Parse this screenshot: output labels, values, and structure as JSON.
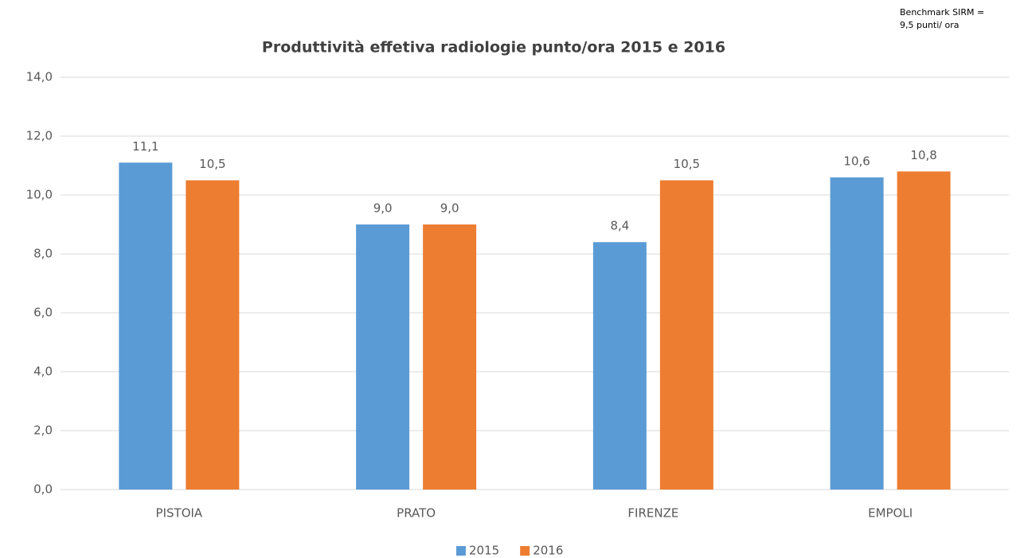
{
  "chart_data": {
    "type": "bar",
    "title": "Produttività effetiva radiologie punto/ora 2015 e 2016",
    "annotation": [
      "Benchmark SIRM =",
      "9,5 punti/ ora"
    ],
    "categories": [
      "PISTOIA",
      "PRATO",
      "FIRENZE",
      "EMPOLI"
    ],
    "series": [
      {
        "name": "2015",
        "color": "#5b9bd5",
        "values": [
          11.1,
          9.0,
          8.4,
          10.6
        ],
        "value_labels": [
          "11,1",
          "9,0",
          "8,4",
          "10,6"
        ]
      },
      {
        "name": "2016",
        "color": "#ed7d31",
        "values": [
          10.5,
          9.0,
          10.5,
          10.8
        ],
        "value_labels": [
          "10,5",
          "9,0",
          "10,5",
          "10,8"
        ]
      }
    ],
    "ylim": [
      0,
      14
    ],
    "yticks": [
      {
        "value": 0,
        "label": "0,0"
      },
      {
        "value": 2,
        "label": "2,0"
      },
      {
        "value": 4,
        "label": "4,0"
      },
      {
        "value": 6,
        "label": "6,0"
      },
      {
        "value": 8,
        "label": "8,0"
      },
      {
        "value": 10,
        "label": "10,0"
      },
      {
        "value": 12,
        "label": "12,0"
      },
      {
        "value": 14,
        "label": "14,0"
      }
    ],
    "grid": true,
    "legend": "bottom"
  }
}
